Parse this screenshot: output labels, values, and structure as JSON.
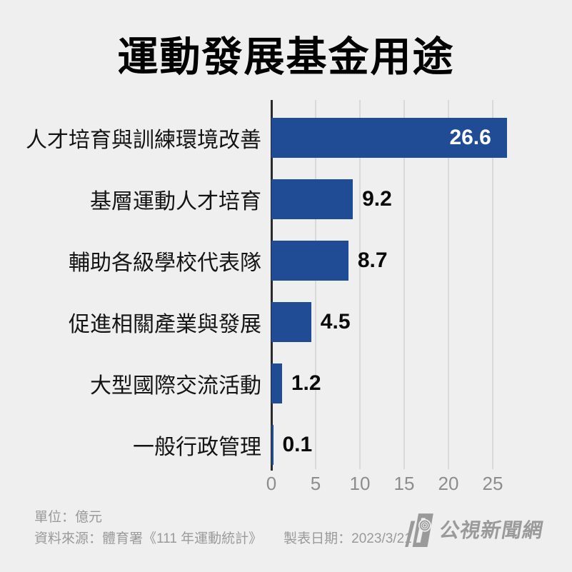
{
  "title": "運動發展基金用途",
  "chart_data": {
    "type": "bar",
    "orientation": "horizontal",
    "title": "運動發展基金用途",
    "categories": [
      "人才培育與訓練環境改善",
      "基層運動人才培育",
      "輔助各級學校代表隊",
      "促進相關產業與發展",
      "大型國際交流活動",
      "一般行政管理"
    ],
    "values": [
      26.6,
      9.2,
      8.7,
      4.5,
      1.2,
      0.1
    ],
    "value_labels": [
      "26.6",
      "9.2",
      "8.7",
      "4.5",
      "1.2",
      "0.1"
    ],
    "value_label_inside": [
      true,
      false,
      false,
      false,
      false,
      false
    ],
    "x_ticks": [
      0,
      5,
      10,
      15,
      20,
      25
    ],
    "xlim": [
      0,
      33.2
    ],
    "grid": true,
    "legend": false,
    "unit": "億元",
    "xlabel": "",
    "ylabel": ""
  },
  "footer": {
    "unit_note": "單位：億元",
    "source_note": "資料來源：體育署《111 年運動統計》",
    "date_note": "製表日期：2023/3/21",
    "logo_text": "公視新聞網"
  },
  "colors": {
    "background": "#efefef",
    "bar": "#1f4c94",
    "gridline": "#d9d9d9",
    "axis": "#2b2b2b",
    "tick_label": "#8d8d8d",
    "footer_text": "#9a9a9a",
    "title_text": "#000000",
    "value_text": "#0a0a0a",
    "value_text_inside": "#ffffff"
  }
}
